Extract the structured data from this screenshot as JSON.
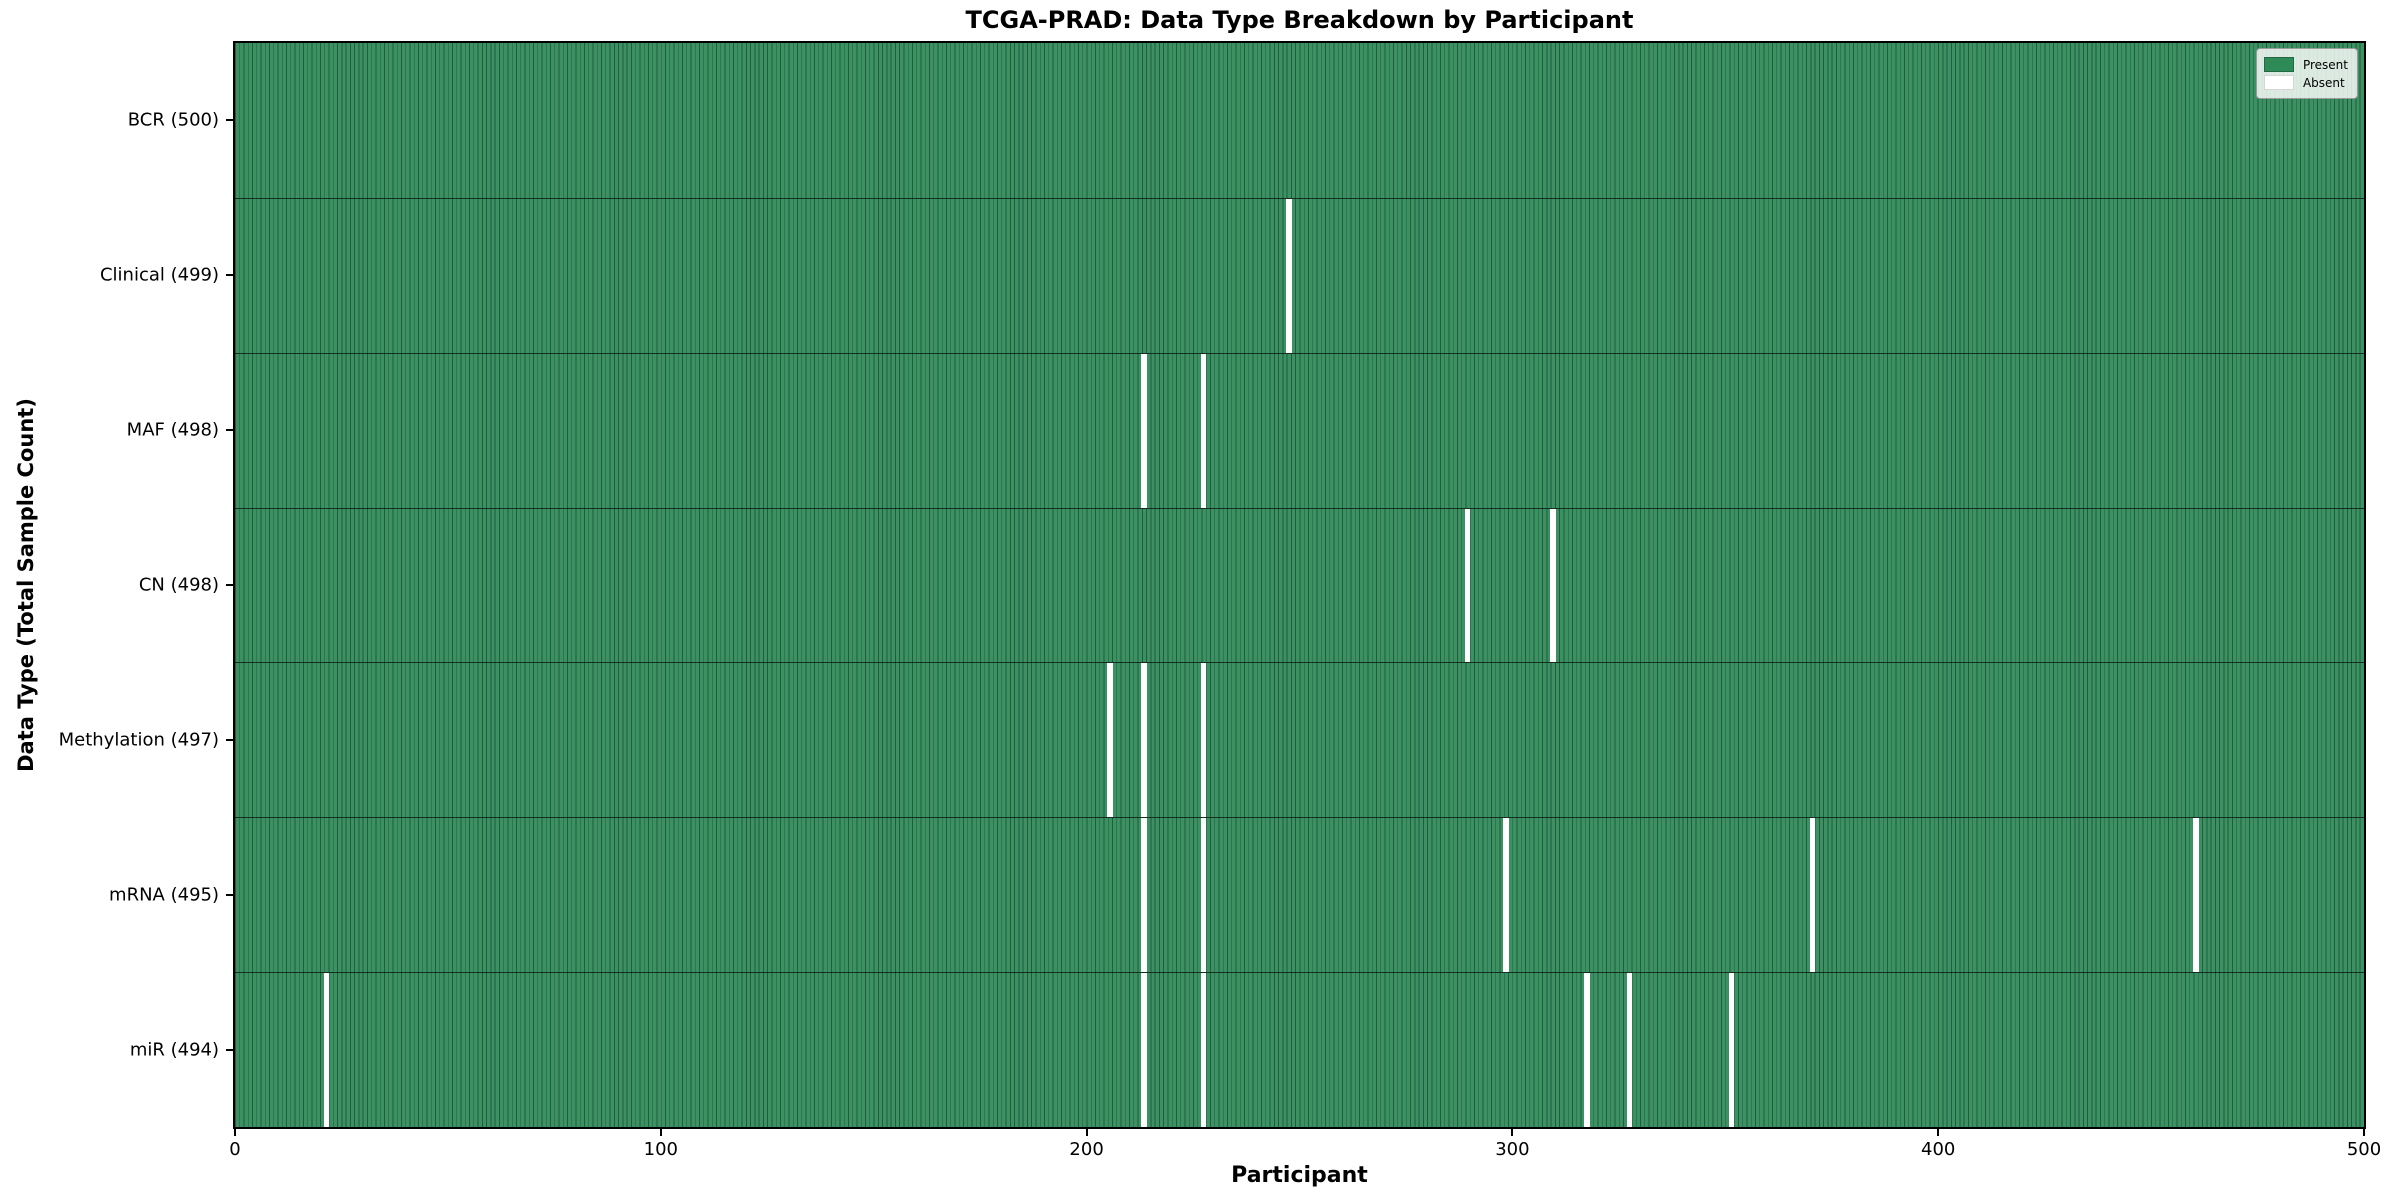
{
  "chart_data": {
    "type": "heatmap",
    "title": "TCGA-PRAD: Data Type Breakdown by Participant",
    "xlabel": "Participant",
    "ylabel": "Data Type (Total Sample Count)",
    "x_range": [
      0,
      500
    ],
    "n_participants": 500,
    "x_ticks": [
      0,
      100,
      200,
      300,
      400,
      500
    ],
    "grid": false,
    "legend_position": "upper right",
    "legend": [
      {
        "label": "Present",
        "color": "#2e8b57"
      },
      {
        "label": "Absent",
        "color": "#ffffff"
      }
    ],
    "colors": {
      "present_fill": "#3b9162",
      "cell_edge": "#215c3c",
      "absent_fill": "#ffffff",
      "row_separator": "#0a190f",
      "plot_border": "#000000"
    },
    "rows": [
      {
        "key": "bcr",
        "label": "BCR (500)",
        "data_type": "BCR",
        "present_count": 500,
        "absent_participants": []
      },
      {
        "key": "clinical",
        "label": "Clinical (499)",
        "data_type": "Clinical",
        "present_count": 499,
        "absent_participants": [
          247
        ]
      },
      {
        "key": "maf",
        "label": "MAF (498)",
        "data_type": "MAF",
        "present_count": 498,
        "absent_participants": [
          213,
          227
        ]
      },
      {
        "key": "cn",
        "label": "CN (498)",
        "data_type": "CN",
        "present_count": 498,
        "absent_participants": [
          289,
          309
        ]
      },
      {
        "key": "methylation",
        "label": "Methylation (497)",
        "data_type": "Methylation",
        "present_count": 497,
        "absent_participants": [
          205,
          213,
          227
        ]
      },
      {
        "key": "mrna",
        "label": "mRNA (495)",
        "data_type": "mRNA",
        "present_count": 495,
        "absent_participants": [
          213,
          227,
          298,
          370,
          460
        ]
      },
      {
        "key": "mir",
        "label": "miR (494)",
        "data_type": "miR",
        "present_count": 494,
        "absent_participants": [
          21,
          213,
          227,
          317,
          327,
          351
        ]
      }
    ]
  }
}
